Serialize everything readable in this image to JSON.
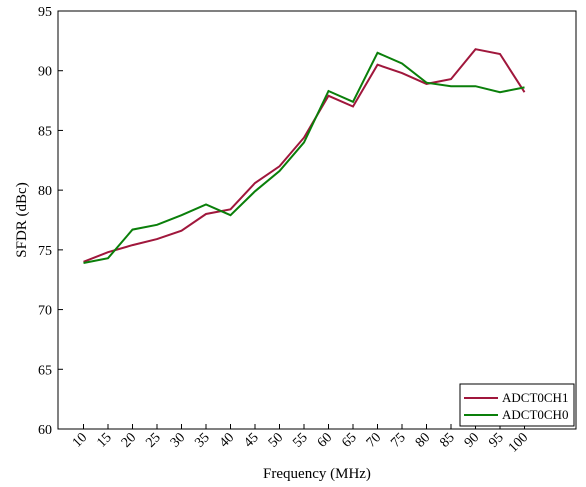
{
  "chart_data": {
    "type": "line",
    "xlabel": "Frequency (MHz)",
    "ylabel": "SFDR (dBc)",
    "x": [
      10,
      15,
      20,
      25,
      30,
      35,
      40,
      45,
      50,
      55,
      60,
      65,
      70,
      75,
      80,
      85,
      90,
      95,
      100
    ],
    "x_tick_labels": [
      "10",
      "15",
      "20",
      "25",
      "30",
      "35",
      "40",
      "45",
      "50",
      "55",
      "60",
      "65",
      "70",
      "75",
      "80",
      "85",
      "90",
      "95",
      "100"
    ],
    "ylim": [
      60,
      95
    ],
    "y_ticks": [
      60,
      65,
      70,
      75,
      80,
      85,
      90,
      95
    ],
    "y_tick_labels": [
      "60",
      "65",
      "70",
      "75",
      "80",
      "85",
      "90",
      "95"
    ],
    "grid": false,
    "legend_position": "bottom-right",
    "series": [
      {
        "name": "ADCT0CH1",
        "color": "#a0173c",
        "values": [
          74.0,
          74.8,
          75.4,
          75.9,
          76.6,
          78.0,
          78.4,
          80.6,
          82.0,
          84.4,
          87.9,
          87.0,
          90.5,
          89.8,
          88.9,
          89.3,
          91.8,
          91.4,
          88.2
        ]
      },
      {
        "name": "ADCT0CH0",
        "color": "#0a7f0a",
        "values": [
          73.9,
          74.3,
          76.7,
          77.1,
          77.9,
          78.8,
          77.9,
          79.9,
          81.6,
          84.0,
          88.3,
          87.4,
          91.5,
          90.6,
          89.0,
          88.7,
          88.7,
          88.2,
          88.6
        ]
      }
    ]
  }
}
